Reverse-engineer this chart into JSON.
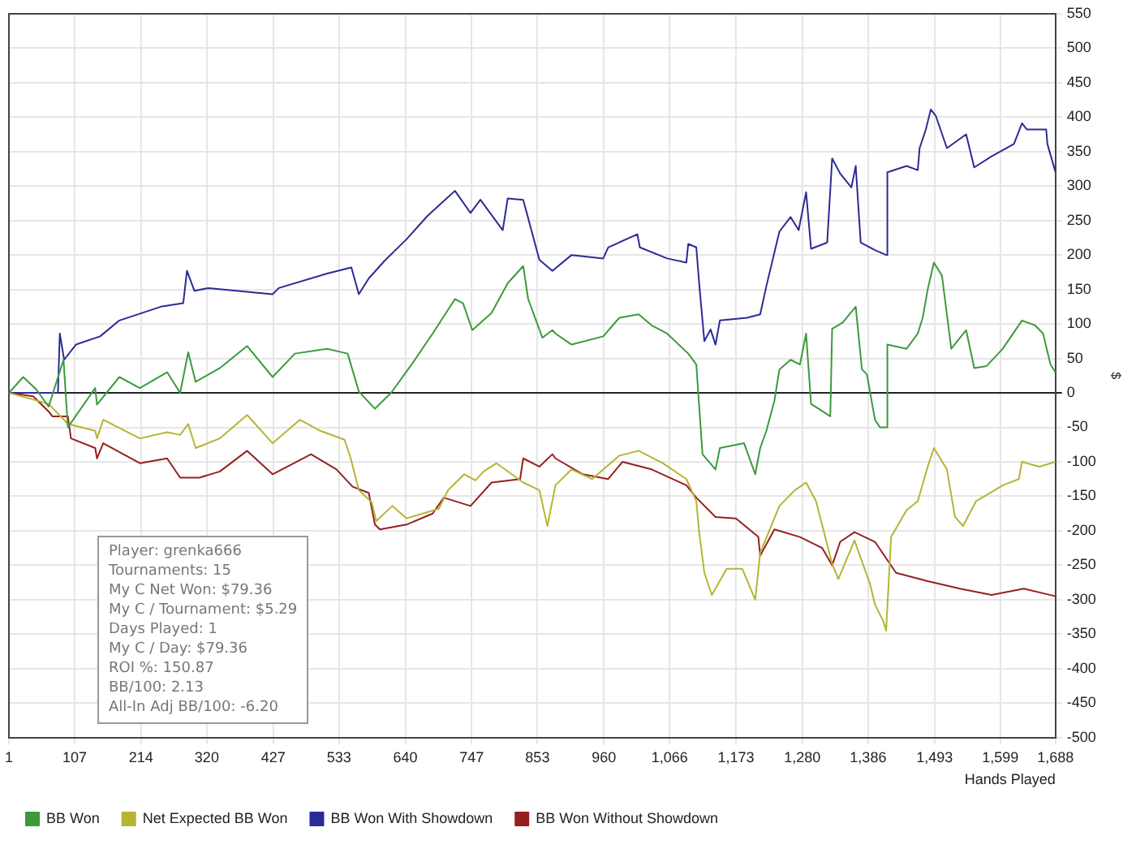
{
  "chart_data": {
    "type": "line",
    "xlabel": "Hands Played",
    "ylabel": "$",
    "xlim": [
      1,
      1688
    ],
    "ylim": [
      -500,
      550
    ],
    "xticks": [
      1,
      107,
      214,
      320,
      427,
      533,
      640,
      747,
      853,
      960,
      {
        "value": 1066,
        "label": "1,066"
      },
      {
        "value": 1173,
        "label": "1,173"
      },
      {
        "value": 1280,
        "label": "1,280"
      },
      {
        "value": 1386,
        "label": "1,386"
      },
      {
        "value": 1493,
        "label": "1,493"
      },
      {
        "value": 1599,
        "label": "1,599"
      },
      {
        "value": 1688,
        "label": "1,688"
      }
    ],
    "yticks": [
      -500,
      -450,
      -400,
      -350,
      -300,
      -250,
      -200,
      -150,
      -100,
      -50,
      0,
      50,
      100,
      150,
      200,
      250,
      300,
      350,
      400,
      450,
      500,
      550
    ],
    "grid": true,
    "legend": "bottom",
    "marker": "none",
    "line_style": "solid",
    "annotations": [
      "Player: grenka666",
      "Tournaments: 15",
      "My C Net Won: $79.36",
      "My C / Tournament: $5.29",
      "Days Played: 1",
      "My C / Day: $79.36",
      "ROI %: 150.87",
      "BB/100: 2.13",
      "All-In Adj BB/100: -6.20"
    ],
    "series": [
      {
        "name": "BB Won",
        "color": "#3c9a3c",
        "x": [
          1,
          24,
          45,
          65,
          89,
          96,
          140,
          143,
          179,
          212,
          256,
          277,
          290,
          302,
          341,
          385,
          426,
          462,
          514,
          547,
          565,
          591,
          617,
          650,
          684,
          720,
          733,
          748,
          779,
          805,
          830,
          838,
          861,
          877,
          882,
          908,
          959,
          985,
          1016,
          1037,
          1062,
          1096,
          1109,
          1119,
          1140,
          1147,
          1186,
          1204,
          1212,
          1222,
          1235,
          1243,
          1261,
          1276,
          1286,
          1294,
          1325,
          1328,
          1345,
          1366,
          1376,
          1384,
          1397,
          1405,
          1415,
          1417,
          1448,
          1466,
          1474,
          1482,
          1492,
          1505,
          1520,
          1544,
          1557,
          1577,
          1603,
          1634,
          1655,
          1668,
          1680,
          1688
        ],
        "values": [
          0,
          23,
          5,
          -20,
          48,
          -50,
          7,
          -17,
          23,
          7,
          30,
          0,
          59,
          16,
          36,
          68,
          23,
          57,
          64,
          57,
          2,
          -23,
          0,
          41,
          86,
          136,
          130,
          91,
          116,
          159,
          184,
          136,
          80,
          91,
          86,
          70,
          82,
          109,
          114,
          98,
          86,
          57,
          41,
          -89,
          -111,
          -80,
          -73,
          -118,
          -80,
          -55,
          -11,
          34,
          48,
          41,
          86,
          -16,
          -34,
          93,
          102,
          125,
          34,
          27,
          -39,
          -50,
          -50,
          70,
          64,
          86,
          109,
          150,
          189,
          170,
          64,
          91,
          36,
          39,
          64,
          105,
          98,
          86,
          41,
          30
        ]
      },
      {
        "name": "Net Expected BB Won",
        "color": "#b5b533",
        "x": [
          1,
          65,
          96,
          140,
          143,
          153,
          212,
          256,
          277,
          290,
          302,
          341,
          385,
          426,
          470,
          503,
          542,
          552,
          565,
          586,
          593,
          619,
          642,
          668,
          694,
          709,
          735,
          753,
          766,
          787,
          830,
          856,
          869,
          882,
          908,
          941,
          985,
          1016,
          1055,
          1093,
          1109,
          1114,
          1122,
          1134,
          1158,
          1183,
          1204,
          1212,
          1243,
          1268,
          1286,
          1302,
          1328,
          1338,
          1364,
          1389,
          1397,
          1410,
          1415,
          1423,
          1448,
          1466,
          1482,
          1492,
          1513,
          1526,
          1539,
          1560,
          1577,
          1603,
          1629,
          1634,
          1662,
          1688
        ],
        "values": [
          0,
          -16,
          -45,
          -55,
          -66,
          -39,
          -66,
          -57,
          -61,
          -45,
          -80,
          -66,
          -32,
          -73,
          -39,
          -55,
          -68,
          -95,
          -141,
          -159,
          -186,
          -164,
          -182,
          -175,
          -168,
          -141,
          -118,
          -127,
          -114,
          -102,
          -130,
          -141,
          -193,
          -134,
          -111,
          -125,
          -91,
          -84,
          -102,
          -125,
          -157,
          -205,
          -261,
          -293,
          -255,
          -255,
          -300,
          -232,
          -164,
          -141,
          -130,
          -157,
          -248,
          -270,
          -214,
          -277,
          -307,
          -330,
          -345,
          -209,
          -170,
          -157,
          -107,
          -80,
          -111,
          -180,
          -193,
          -157,
          -148,
          -134,
          -125,
          -100,
          -107,
          -100
        ]
      },
      {
        "name": "BB Won With Showdown",
        "color": "#2b2b96",
        "x": [
          1,
          58,
          80,
          83,
          90,
          109,
          148,
          179,
          246,
          282,
          288,
          300,
          323,
          426,
          436,
          514,
          553,
          565,
          581,
          606,
          642,
          676,
          709,
          720,
          745,
          761,
          797,
          805,
          830,
          856,
          877,
          908,
          959,
          967,
          1014,
          1018,
          1062,
          1093,
          1096,
          1109,
          1114,
          1122,
          1132,
          1140,
          1147,
          1191,
          1212,
          1222,
          1243,
          1261,
          1274,
          1286,
          1294,
          1320,
          1328,
          1341,
          1359,
          1366,
          1374,
          1397,
          1415,
          1417,
          1448,
          1466,
          1469,
          1479,
          1487,
          1495,
          1513,
          1544,
          1557,
          1585,
          1621,
          1634,
          1642,
          1673,
          1675,
          1688
        ],
        "values": [
          0,
          0,
          0,
          86,
          48,
          70,
          82,
          105,
          125,
          130,
          177,
          148,
          152,
          143,
          152,
          173,
          182,
          143,
          166,
          191,
          223,
          257,
          284,
          293,
          261,
          280,
          236,
          282,
          280,
          193,
          177,
          200,
          195,
          211,
          230,
          211,
          195,
          189,
          216,
          211,
          155,
          75,
          92,
          70,
          105,
          109,
          114,
          155,
          234,
          255,
          236,
          291,
          209,
          218,
          340,
          318,
          298,
          329,
          218,
          207,
          200,
          320,
          329,
          323,
          355,
          382,
          411,
          402,
          355,
          375,
          327,
          343,
          361,
          391,
          382,
          382,
          361,
          320
        ]
      },
      {
        "name": "BB Won Without Showdown",
        "color": "#962020",
        "x": [
          1,
          40,
          65,
          71,
          96,
          101,
          140,
          143,
          153,
          212,
          256,
          277,
          308,
          341,
          385,
          426,
          488,
          529,
          555,
          581,
          591,
          599,
          642,
          684,
          702,
          745,
          779,
          825,
          830,
          856,
          877,
          882,
          926,
          967,
          990,
          1037,
          1093,
          1109,
          1140,
          1173,
          1209,
          1212,
          1235,
          1276,
          1312,
          1328,
          1341,
          1364,
          1397,
          1431,
          1482,
          1534,
          1585,
          1637,
          1688
        ],
        "values": [
          0,
          -5,
          -27,
          -34,
          -34,
          -66,
          -80,
          -95,
          -73,
          -102,
          -95,
          -123,
          -123,
          -114,
          -84,
          -118,
          -89,
          -111,
          -136,
          -145,
          -191,
          -198,
          -191,
          -175,
          -152,
          -164,
          -130,
          -125,
          -95,
          -107,
          -89,
          -95,
          -118,
          -125,
          -100,
          -111,
          -134,
          -152,
          -180,
          -182,
          -209,
          -236,
          -198,
          -209,
          -225,
          -250,
          -216,
          -202,
          -216,
          -261,
          -273,
          -284,
          -293,
          -284,
          -295
        ]
      }
    ]
  }
}
